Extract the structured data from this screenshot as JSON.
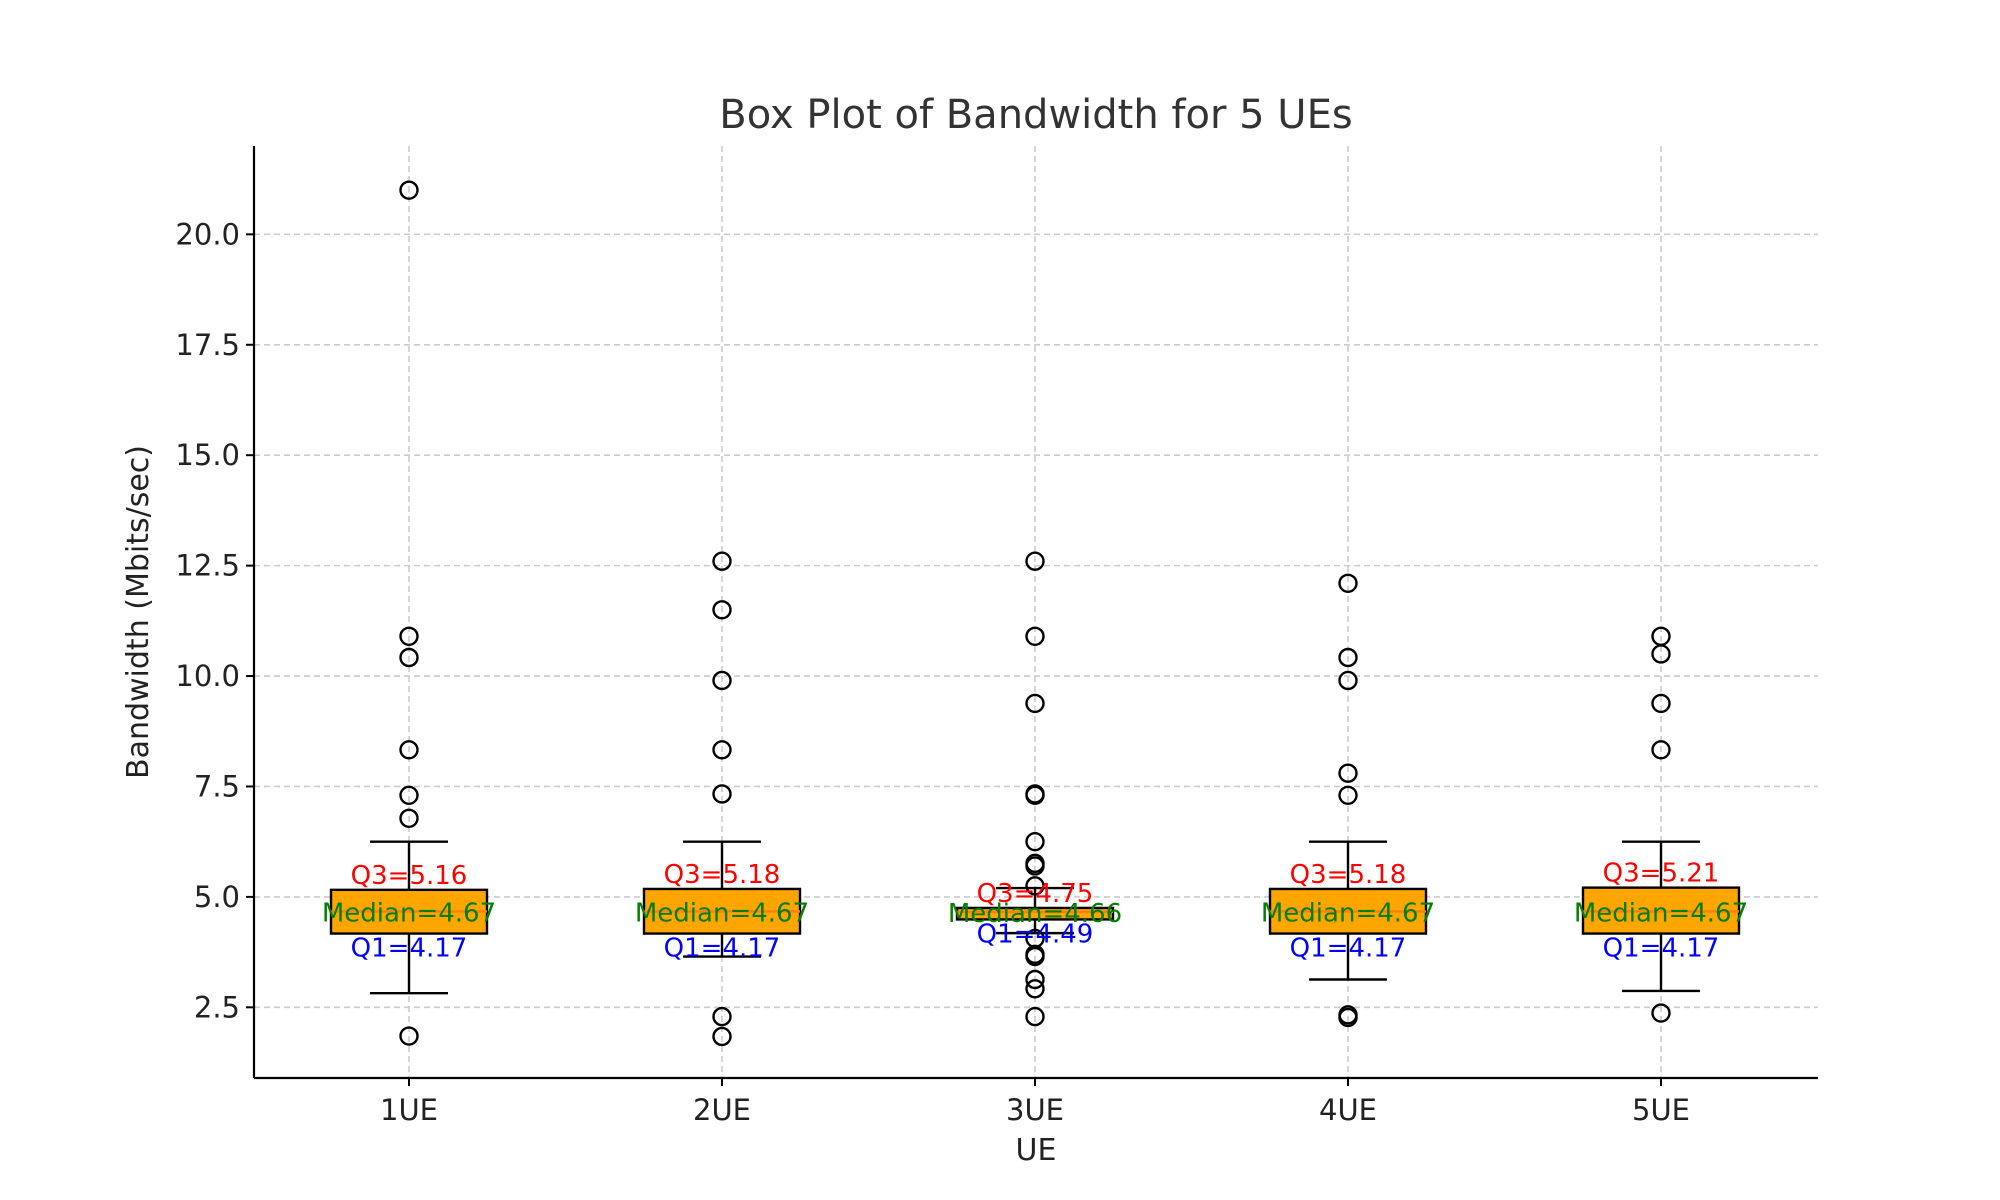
{
  "chart_data": {
    "type": "box",
    "title": "Box Plot of Bandwidth for 5 UEs",
    "xlabel": "UE",
    "ylabel": "Bandwidth (Mbits/sec)",
    "categories": [
      "1UE",
      "2UE",
      "3UE",
      "4UE",
      "5UE"
    ],
    "ylim": [
      0.9,
      22.0
    ],
    "yticks": [
      2.5,
      5.0,
      7.5,
      10.0,
      12.5,
      15.0,
      17.5,
      20.0
    ],
    "ytick_labels": [
      "2.5",
      "5.0",
      "7.5",
      "10.0",
      "12.5",
      "15.0",
      "17.5",
      "20.0"
    ],
    "grid": true,
    "colors": {
      "box_fill": "#FFA500",
      "median_line": "#FF7F0E",
      "q3_label": "#FF0000",
      "median_label": "#008000",
      "q1_label": "#0000FF",
      "grid": "#cccccc",
      "axis": "#000000"
    },
    "boxes": [
      {
        "name": "1UE",
        "q1": 4.17,
        "median": 4.67,
        "q3": 5.16,
        "whisker_low": 2.82,
        "whisker_high": 6.25,
        "outliers": [
          1.85,
          6.78,
          7.3,
          8.33,
          10.42,
          10.9,
          21.0
        ],
        "q3_label": "Q3=5.16",
        "median_label": "Median=4.67",
        "q1_label": "Q1=4.17"
      },
      {
        "name": "2UE",
        "q1": 4.17,
        "median": 4.67,
        "q3": 5.18,
        "whisker_low": 3.65,
        "whisker_high": 6.25,
        "outliers": [
          1.84,
          2.29,
          7.33,
          8.33,
          9.9,
          11.5,
          12.6
        ],
        "q3_label": "Q3=5.18",
        "median_label": "Median=4.67",
        "q1_label": "Q1=4.17"
      },
      {
        "name": "3UE",
        "q1": 4.49,
        "median": 4.66,
        "q3": 4.75,
        "whisker_low": 4.18,
        "whisker_high": 5.2,
        "outliers": [
          2.29,
          2.92,
          3.13,
          3.65,
          3.7,
          4.06,
          5.25,
          5.7,
          5.76,
          6.25,
          7.3,
          7.33,
          9.38,
          10.9,
          12.6
        ],
        "q3_label": "Q3=4.75",
        "median_label": "Median=4.66",
        "q1_label": "Q1=4.49"
      },
      {
        "name": "4UE",
        "q1": 4.17,
        "median": 4.67,
        "q3": 5.18,
        "whisker_low": 3.13,
        "whisker_high": 6.25,
        "outliers": [
          2.27,
          2.33,
          7.3,
          7.8,
          9.9,
          10.42,
          12.1
        ],
        "q3_label": "Q3=5.18",
        "median_label": "Median=4.67",
        "q1_label": "Q1=4.17"
      },
      {
        "name": "5UE",
        "q1": 4.17,
        "median": 4.67,
        "q3": 5.21,
        "whisker_low": 2.87,
        "whisker_high": 6.25,
        "outliers": [
          2.37,
          8.33,
          9.38,
          10.5,
          10.9
        ],
        "q3_label": "Q3=5.21",
        "median_label": "Median=4.67",
        "q1_label": "Q1=4.17"
      }
    ]
  }
}
